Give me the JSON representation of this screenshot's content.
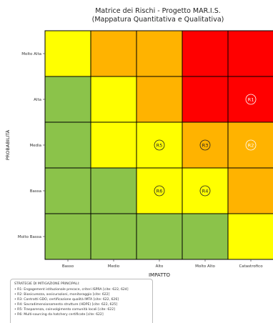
{
  "chart_data": {
    "type": "heatmap",
    "title": "Matrice dei Rischi - Progetto MAR.I.S.",
    "subtitle": "(Mappatura Quantitativa e Qualitativa)",
    "xlabel": "IMPATTO",
    "ylabel": "PROBABILITÀ",
    "x_categories": [
      "Basso",
      "Medio",
      "Alto",
      "Molto Alto",
      "Catastrofico"
    ],
    "y_categories": [
      "Molto Alta",
      "Alta",
      "Media",
      "Bassa",
      "Molto Bassa"
    ],
    "grid": true,
    "colors": {
      "green": "#8bc34a",
      "yellow": "#ffff00",
      "orange": "#ffb300",
      "red": "#ff0000"
    },
    "cells": [
      [
        "yellow",
        "orange",
        "orange",
        "red",
        "red"
      ],
      [
        "green",
        "yellow",
        "orange",
        "red",
        "red"
      ],
      [
        "green",
        "yellow",
        "yellow",
        "orange",
        "orange"
      ],
      [
        "green",
        "green",
        "yellow",
        "yellow",
        "orange"
      ],
      [
        "green",
        "green",
        "green",
        "green",
        "yellow"
      ]
    ],
    "risks": [
      {
        "label": "R1",
        "x": "Catastrofico",
        "y": "Alta",
        "ring": "#ffffff"
      },
      {
        "label": "R2",
        "x": "Catastrofico",
        "y": "Media",
        "ring": "#ffffff"
      },
      {
        "label": "R3",
        "x": "Molto Alto",
        "y": "Media",
        "ring": "#222222"
      },
      {
        "label": "R4",
        "x": "Molto Alto",
        "y": "Bassa",
        "ring": "#222222"
      },
      {
        "label": "R5",
        "x": "Alto",
        "y": "Media",
        "ring": "#222222"
      },
      {
        "label": "R6",
        "x": "Alto",
        "y": "Bassa",
        "ring": "#222222"
      }
    ]
  },
  "legend": {
    "title": "STRATEGIE DI MITIGAZIONE PRINCIPALI:",
    "items": [
      "• R1: Engagement istituzionale precoce, criteri ISPRA [cite: 622, 624]",
      "• R2: Biosicurezza, assicurazioni, monitoraggio [cite: 622]",
      "• R3: Contratti GDO, certificazione qualità IMTA [cite: 622, 626]",
      "• R4: Sovradimensionamento strutture (HDPE) [cite: 622, 625]",
      "• R5: Trasparenza, coinvolgimento comunità locali [cite: 622]",
      "• R6: Multi-sourcing da hatchery certificate [cite: 622]"
    ]
  }
}
